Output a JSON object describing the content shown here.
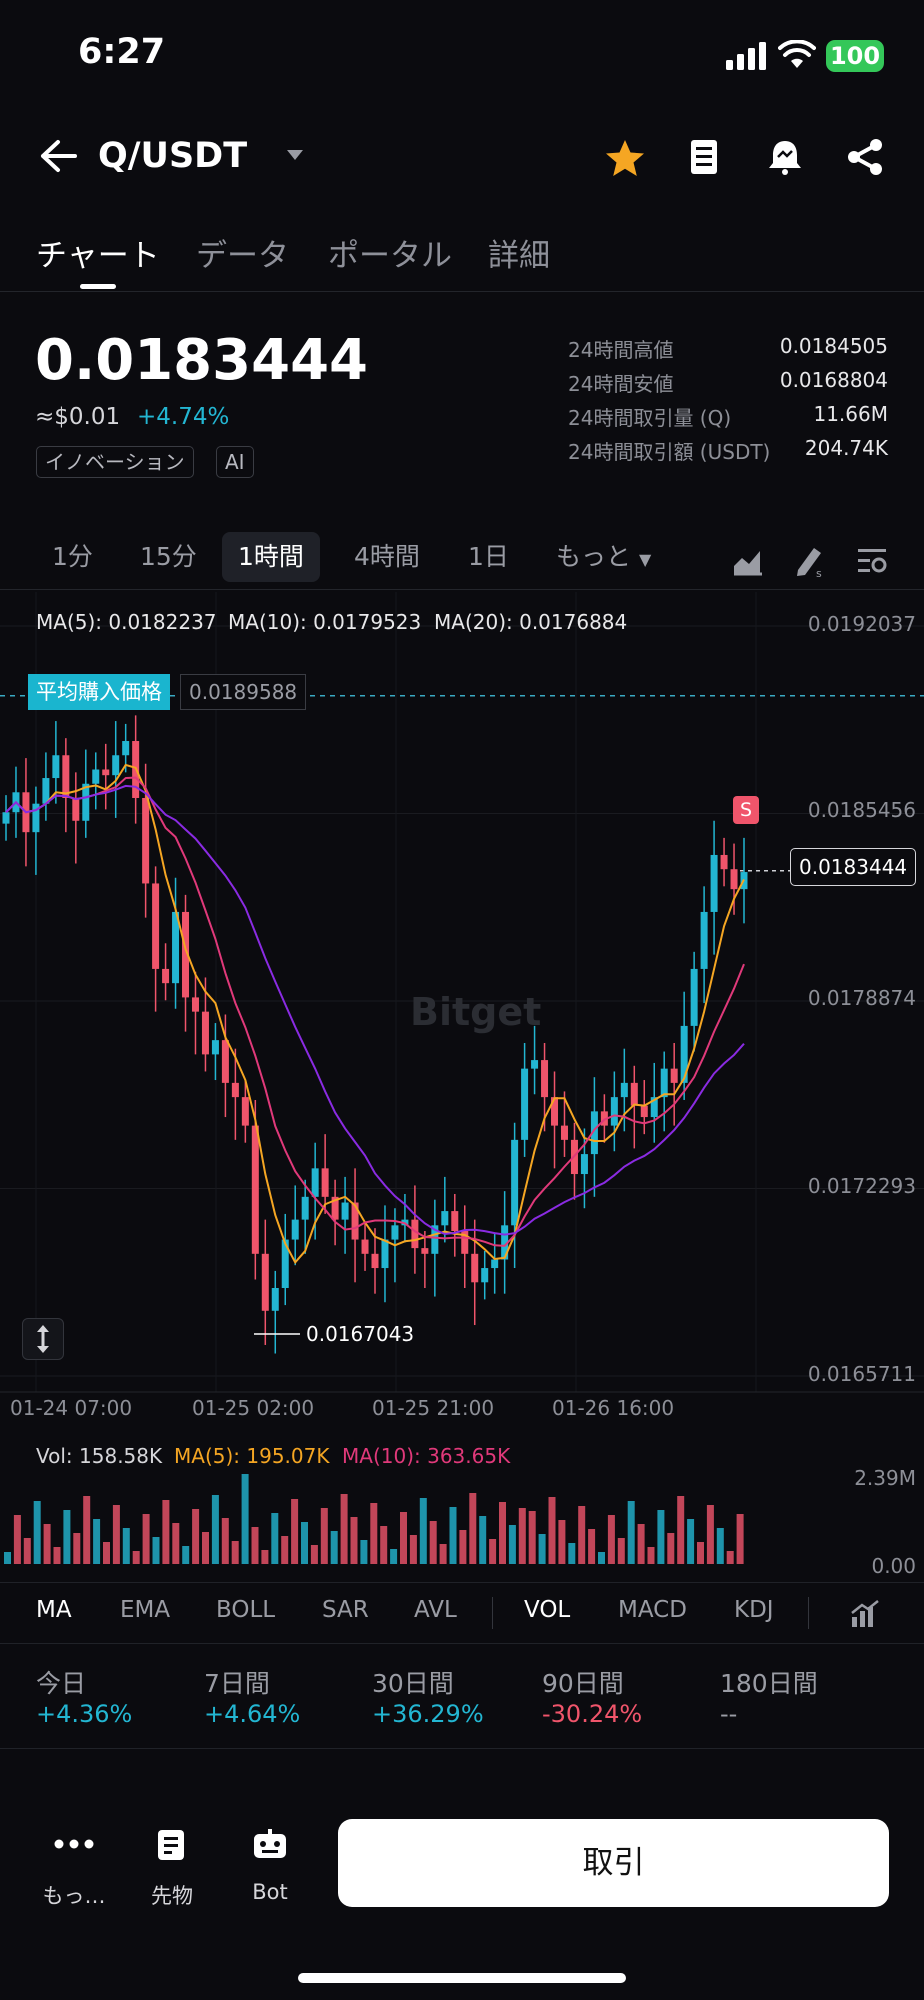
{
  "status": {
    "time": "6:27",
    "battery": "100"
  },
  "header": {
    "pair": "Q/USDT"
  },
  "tabs": [
    {
      "label": "チャート"
    },
    {
      "label": "データ"
    },
    {
      "label": "ポータル"
    },
    {
      "label": "詳細"
    }
  ],
  "ticker": {
    "price": "0.0183444",
    "usd": "≈$0.01",
    "change": "+4.74%",
    "tags": [
      "イノベーション",
      "AI"
    ],
    "stats": [
      {
        "label": "24時間高値",
        "value": "0.0184505"
      },
      {
        "label": "24時間安値",
        "value": "0.0168804"
      },
      {
        "label": "24時間取引量 (Q)",
        "value": "11.66M"
      },
      {
        "label": "24時間取引額 (USDT)",
        "value": "204.74K"
      }
    ]
  },
  "intervals": [
    {
      "label": "1分"
    },
    {
      "label": "15分"
    },
    {
      "label": "1時間"
    },
    {
      "label": "4時間"
    },
    {
      "label": "1日"
    },
    {
      "label": "もっと"
    }
  ],
  "chart_data": {
    "type": "candlestick",
    "ma": [
      {
        "label": "MA(5): 0.0182237",
        "color": "#f5a623"
      },
      {
        "label": "MA(10): 0.0179523",
        "color": "#e0397a"
      },
      {
        "label": "MA(20): 0.0176884",
        "color": "#8a2be2"
      }
    ],
    "y_ticks": [
      "0.0192037",
      "0.0185456",
      "0.0178874",
      "0.0172293",
      "0.0165711"
    ],
    "y_tick_values": [
      0.0192037,
      0.0185456,
      0.0178874,
      0.0172293,
      0.0165711
    ],
    "x_ticks": [
      "01-24 07:00",
      "01-25 02:00",
      "01-25 21:00",
      "01-26 16:00"
    ],
    "avg_buy_label": "平均購入価格",
    "avg_buy_price": "0.0189588",
    "current_price": "0.0183444",
    "low_marker": "0.0167043",
    "sell_marker": "S",
    "watermark": "Bitget",
    "volume": {
      "vol": "Vol: 158.58K",
      "ma5": "MA(5): 195.07K",
      "ma10": "MA(10): 363.65K",
      "max": "2.39M",
      "min": "0.00"
    }
  },
  "indicators": [
    {
      "label": "MA"
    },
    {
      "label": "EMA"
    },
    {
      "label": "BOLL"
    },
    {
      "label": "SAR"
    },
    {
      "label": "AVL"
    },
    {
      "label": "VOL"
    },
    {
      "label": "MACD"
    },
    {
      "label": "KDJ"
    }
  ],
  "performance": [
    {
      "label": "今日",
      "value": "+4.36%",
      "color": "#23b6d2"
    },
    {
      "label": "7日間",
      "value": "+4.64%",
      "color": "#23b6d2"
    },
    {
      "label": "30日間",
      "value": "+36.29%",
      "color": "#23b6d2"
    },
    {
      "label": "90日間",
      "value": "-30.24%",
      "color": "#f0556b"
    },
    {
      "label": "180日間",
      "value": "--",
      "color": "#9a9ca4"
    }
  ],
  "bottom_nav": [
    {
      "label": "もっ…"
    },
    {
      "label": "先物"
    },
    {
      "label": "Bot"
    }
  ],
  "trade_button": "取引",
  "colors": {
    "up": "#23b6d2",
    "down": "#f0556b",
    "accent": "#f5a623"
  }
}
